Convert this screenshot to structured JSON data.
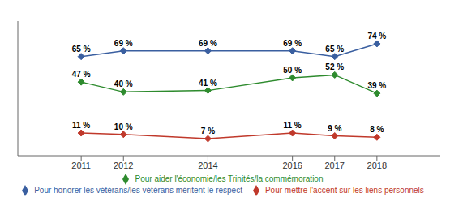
{
  "chart_data": {
    "type": "line",
    "x": [
      2011,
      2012,
      2014,
      2016,
      2017,
      2018
    ],
    "series": [
      {
        "name": "Pour mettre l'accent sur les liens personnels",
        "color": "#c0392b",
        "marker": "diamond",
        "values": [
          11,
          10,
          7,
          11,
          9,
          8
        ],
        "value_labels": [
          "11 %",
          "10 %",
          "7 %",
          "11 %",
          "9 %",
          "8 %"
        ]
      },
      {
        "name": "Pour aider l'économie/les Trinités/la commémoration",
        "color": "#2e8b2e",
        "marker": "diamond",
        "values": [
          47,
          40,
          41,
          50,
          52,
          39
        ],
        "value_labels": [
          "47 %",
          "40 %",
          "41 %",
          "50 %",
          "52 %",
          "39 %"
        ]
      },
      {
        "name": "Pour honorer les vétérans/les vétérans méritent le respect",
        "color": "#3a5fa0",
        "marker": "diamond",
        "values": [
          65,
          69,
          69,
          69,
          65,
          74
        ],
        "value_labels": [
          "65 %",
          "69 %",
          "69 %",
          "69 %",
          "65 %",
          "74 %"
        ]
      }
    ],
    "xlim": [
      2009.5,
      2019.5
    ],
    "xticks": [
      2011,
      2012,
      2014,
      2016,
      2017,
      2018
    ],
    "ylim": [
      -5,
      90
    ],
    "grid": false,
    "legend": "bottom",
    "data_labels": true,
    "tick_labels": "x"
  }
}
